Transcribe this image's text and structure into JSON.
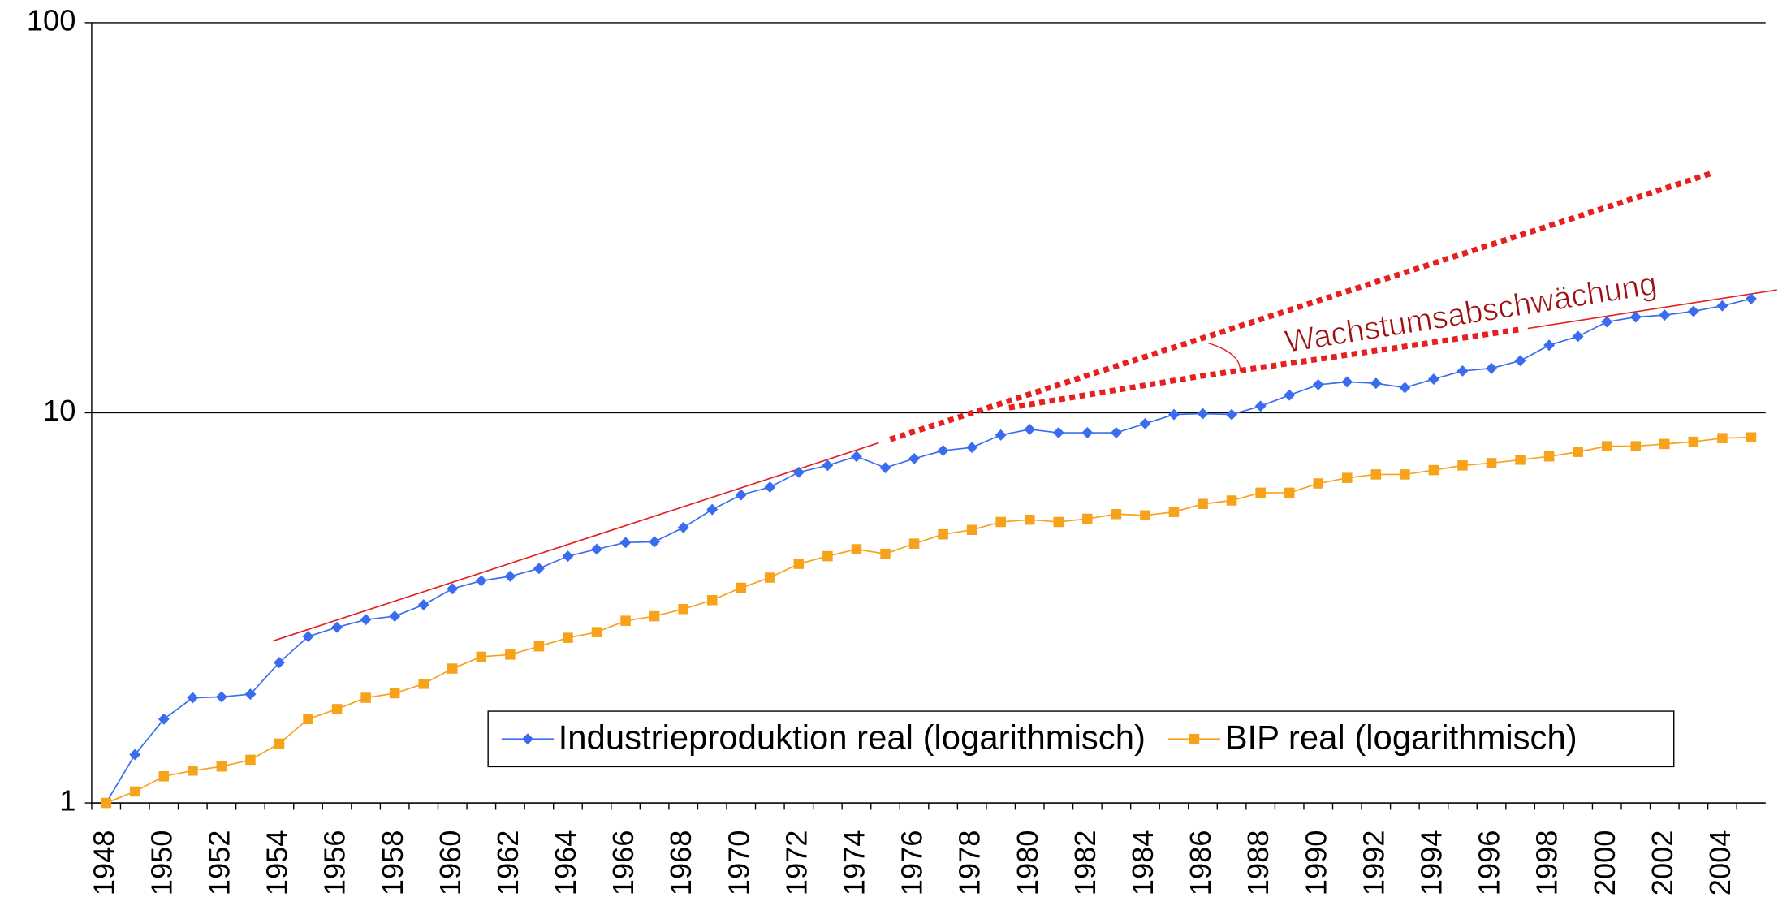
{
  "chart_data": {
    "type": "line",
    "categories": [
      "1948",
      null,
      "1950",
      null,
      "1952",
      null,
      "1954",
      null,
      "1956",
      null,
      "1958",
      null,
      "1960",
      null,
      "1962",
      null,
      "1964",
      null,
      "1966",
      null,
      "1968",
      null,
      "1970",
      null,
      "1972",
      null,
      "1974",
      null,
      "1976",
      null,
      "1978",
      null,
      "1980",
      null,
      "1982",
      null,
      "1984",
      null,
      "1986",
      null,
      "1988",
      null,
      "1990",
      null,
      "1992",
      null,
      "1994",
      null,
      "1996",
      null,
      "1998",
      null,
      "2000",
      null,
      "2002",
      null,
      "2004",
      null
    ],
    "series": [
      {
        "name": "Industrieproduktion real (logarithmisch)",
        "color": "#3a6cf0",
        "marker": "diamond",
        "values": [
          1.0,
          1.33,
          1.64,
          1.86,
          1.87,
          1.9,
          2.29,
          2.67,
          2.82,
          2.95,
          3.01,
          3.22,
          3.54,
          3.71,
          3.81,
          3.99,
          4.29,
          4.47,
          4.65,
          4.67,
          5.08,
          5.65,
          6.16,
          6.45,
          7.04,
          7.33,
          7.73,
          7.23,
          7.63,
          8.0,
          8.15,
          8.77,
          9.07,
          8.89,
          8.89,
          8.89,
          9.38,
          9.9,
          9.95,
          9.9,
          10.4,
          11.1,
          11.8,
          12.0,
          11.9,
          11.6,
          12.2,
          12.8,
          13.0,
          13.6,
          14.9,
          15.7,
          17.1,
          17.6,
          17.8,
          18.2,
          18.8,
          19.6
        ]
      },
      {
        "name": "BIP real (logarithmisch)",
        "color": "#f7a21b",
        "marker": "square",
        "values": [
          1.0,
          1.07,
          1.17,
          1.21,
          1.24,
          1.29,
          1.42,
          1.64,
          1.74,
          1.86,
          1.91,
          2.02,
          2.21,
          2.37,
          2.4,
          2.52,
          2.65,
          2.74,
          2.93,
          3.01,
          3.14,
          3.31,
          3.56,
          3.78,
          4.1,
          4.29,
          4.47,
          4.35,
          4.62,
          4.88,
          5.01,
          5.25,
          5.32,
          5.25,
          5.35,
          5.5,
          5.46,
          5.57,
          5.84,
          5.96,
          6.24,
          6.24,
          6.59,
          6.81,
          6.95,
          6.95,
          7.13,
          7.33,
          7.43,
          7.58,
          7.73,
          7.94,
          8.21,
          8.21,
          8.32,
          8.43,
          8.61,
          8.65
        ]
      }
    ],
    "ylim": [
      1,
      100
    ],
    "yticks": [
      1,
      10,
      100
    ],
    "log_y": true,
    "grid": true,
    "legend": "bottom",
    "annotations": [
      "Wachstumsabschwächung"
    ]
  }
}
